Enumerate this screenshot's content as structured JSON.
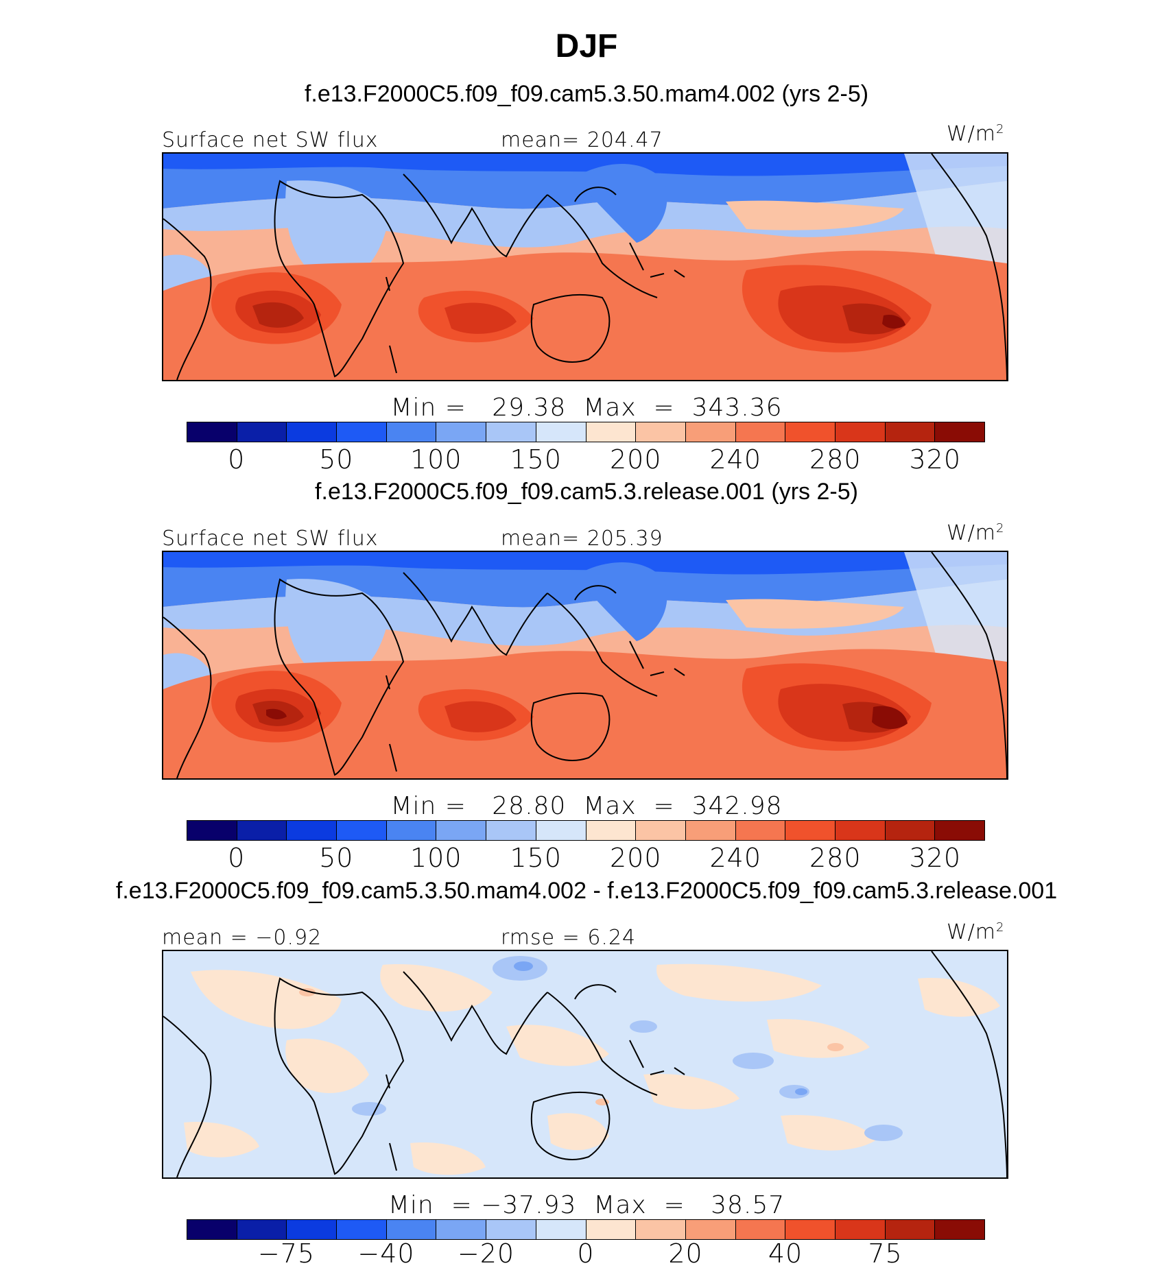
{
  "title": "DJF",
  "colors": {
    "abs_scale": [
      "#08006b",
      "#0a1fa8",
      "#0b3be0",
      "#1e5af5",
      "#4a84f2",
      "#7aa6f4",
      "#a9c6f7",
      "#d6e6fa",
      "#fde5d0",
      "#fbc4a5",
      "#f89e78",
      "#f57650",
      "#f0522c",
      "#d9361a",
      "#b5240f",
      "#8a0c05"
    ],
    "diff_scale": [
      "#08006b",
      "#0a1fa8",
      "#0b3be0",
      "#1e5af5",
      "#4a84f2",
      "#7aa6f4",
      "#a9c6f7",
      "#d6e6fa",
      "#fde5d0",
      "#fbc4a5",
      "#f89e78",
      "#f57650",
      "#f0522c",
      "#d9361a",
      "#b5240f",
      "#8a0c05"
    ]
  },
  "panels": [
    {
      "subtitle": "f.e13.F2000C5.f09_f09.cam5.3.50.mam4.002 (yrs 2-5)",
      "left_label": "Surface net SW flux",
      "center_label": "mean= 204.47",
      "units": "W/m",
      "units_exp": "2",
      "minmax": "Min =   29.38  Max  =  343.36",
      "ticks": [
        "0",
        "50",
        "100",
        "150",
        "200",
        "240",
        "280",
        "320"
      ],
      "stats": {
        "min": 29.38,
        "max": 343.36,
        "mean": 204.47
      },
      "kind": "abs"
    },
    {
      "subtitle": "f.e13.F2000C5.f09_f09.cam5.3.release.001 (yrs 2-5)",
      "left_label": "Surface net SW flux",
      "center_label": "mean= 205.39",
      "units": "W/m",
      "units_exp": "2",
      "minmax": "Min =   28.80  Max  =  342.98",
      "ticks": [
        "0",
        "50",
        "100",
        "150",
        "200",
        "240",
        "280",
        "320"
      ],
      "stats": {
        "min": 28.8,
        "max": 342.98,
        "mean": 205.39
      },
      "kind": "abs"
    },
    {
      "subtitle": "f.e13.F2000C5.f09_f09.cam5.3.50.mam4.002 - f.e13.F2000C5.f09_f09.cam5.3.release.001",
      "left_label": "mean =   −0.92",
      "center_label": "rmse =    6.24",
      "units": "W/m",
      "units_exp": "2",
      "minmax": "Min  = −37.93  Max  =   38.57",
      "ticks": [
        "−75",
        "−40",
        "−20",
        "0",
        "20",
        "40",
        "75"
      ],
      "stats": {
        "min": -37.93,
        "max": 38.57,
        "mean": -0.92,
        "rmse": 6.24
      },
      "kind": "diff"
    }
  ]
}
